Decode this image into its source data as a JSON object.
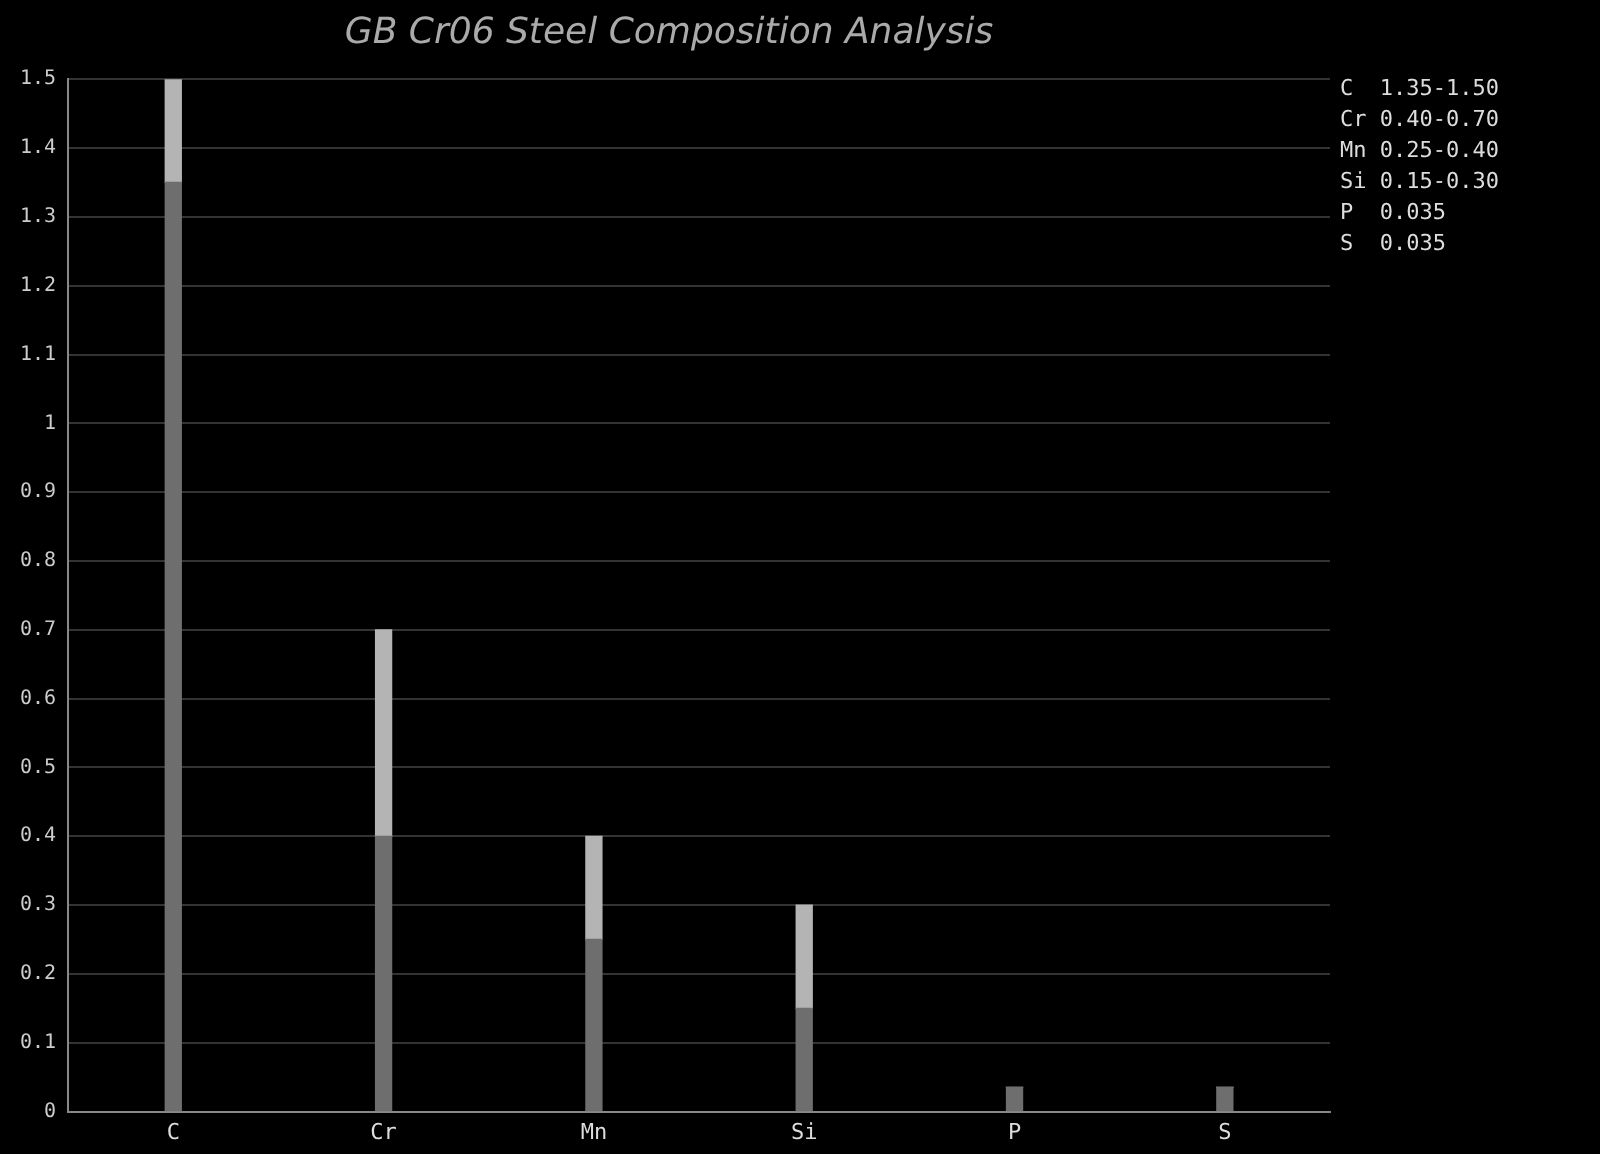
{
  "chart_data": {
    "type": "bar",
    "title": "GB Cr06 Steel Composition Analysis",
    "categories": [
      "C",
      "Cr",
      "Mn",
      "Si",
      "P",
      "S"
    ],
    "stacked": true,
    "series": [
      {
        "color": "#6e6e6e",
        "values": [
          1.35,
          0.4,
          0.25,
          0.15,
          0.035,
          0.035
        ]
      },
      {
        "color": "#b4b4b4",
        "values": [
          0.15,
          0.3,
          0.15,
          0.15,
          0,
          0
        ]
      }
    ],
    "ylim": [
      0,
      1.5
    ],
    "yticks": [
      0,
      0.1,
      0.2,
      0.3,
      0.4,
      0.5,
      0.6,
      0.7,
      0.8,
      0.9,
      1,
      1.1,
      1.2,
      1.3,
      1.4,
      1.5
    ],
    "grid": "y",
    "annotations": [
      "C  1.35-1.50",
      "Cr 0.40-0.70",
      "Mn 0.25-0.40",
      "Si 0.15-0.30",
      "P  0.035",
      "S  0.035"
    ]
  }
}
